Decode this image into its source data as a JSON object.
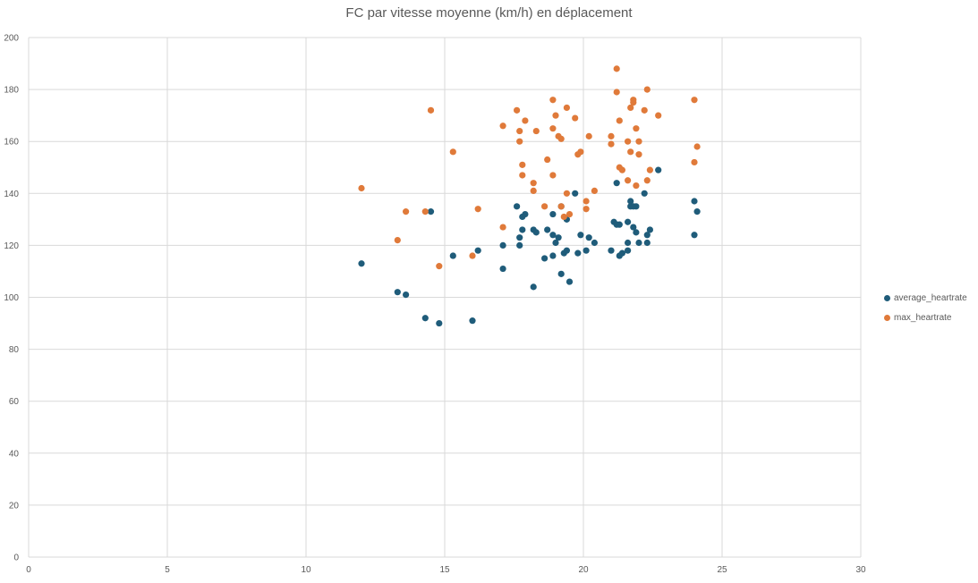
{
  "chart_data": {
    "type": "scatter",
    "title": "FC par vitesse moyenne (km/h) en déplacement",
    "xlabel": "",
    "ylabel": "",
    "xlim": [
      0,
      30
    ],
    "ylim": [
      0,
      200
    ],
    "xticks": [
      0,
      5,
      10,
      15,
      20,
      25,
      30
    ],
    "yticks": [
      0,
      20,
      40,
      60,
      80,
      100,
      120,
      140,
      160,
      180,
      200
    ],
    "grid": true,
    "legend_position": "right",
    "series": [
      {
        "name": "average_heartrate",
        "color": "#1f5c7a",
        "points": [
          [
            12.0,
            113
          ],
          [
            13.3,
            102
          ],
          [
            13.6,
            101
          ],
          [
            14.3,
            92
          ],
          [
            14.5,
            133
          ],
          [
            14.8,
            90
          ],
          [
            15.3,
            116
          ],
          [
            16.0,
            91
          ],
          [
            16.2,
            118
          ],
          [
            17.1,
            111
          ],
          [
            17.1,
            120
          ],
          [
            17.6,
            135
          ],
          [
            17.7,
            123
          ],
          [
            17.7,
            120
          ],
          [
            17.8,
            131
          ],
          [
            17.8,
            126
          ],
          [
            17.9,
            132
          ],
          [
            18.2,
            104
          ],
          [
            18.2,
            126
          ],
          [
            18.3,
            125
          ],
          [
            18.6,
            115
          ],
          [
            18.7,
            126
          ],
          [
            18.9,
            132
          ],
          [
            18.9,
            116
          ],
          [
            18.9,
            124
          ],
          [
            19.0,
            121
          ],
          [
            19.1,
            123
          ],
          [
            19.2,
            109
          ],
          [
            19.2,
            135
          ],
          [
            19.3,
            117
          ],
          [
            19.4,
            118
          ],
          [
            19.4,
            130
          ],
          [
            19.5,
            106
          ],
          [
            19.7,
            140
          ],
          [
            19.8,
            117
          ],
          [
            19.9,
            124
          ],
          [
            20.1,
            118
          ],
          [
            20.2,
            123
          ],
          [
            20.4,
            121
          ],
          [
            21.0,
            118
          ],
          [
            21.1,
            129
          ],
          [
            21.2,
            144
          ],
          [
            21.2,
            128
          ],
          [
            21.3,
            128
          ],
          [
            21.3,
            116
          ],
          [
            21.4,
            117
          ],
          [
            21.6,
            118
          ],
          [
            21.6,
            129
          ],
          [
            21.6,
            121
          ],
          [
            21.7,
            135
          ],
          [
            21.7,
            137
          ],
          [
            21.8,
            135
          ],
          [
            21.8,
            127
          ],
          [
            21.9,
            125
          ],
          [
            21.9,
            135
          ],
          [
            22.0,
            121
          ],
          [
            22.2,
            140
          ],
          [
            22.3,
            121
          ],
          [
            22.3,
            124
          ],
          [
            22.4,
            126
          ],
          [
            22.7,
            149
          ],
          [
            24.0,
            137
          ],
          [
            24.0,
            124
          ],
          [
            24.1,
            133
          ]
        ]
      },
      {
        "name": "max_heartrate",
        "color": "#e07a3a",
        "points": [
          [
            12.0,
            142
          ],
          [
            13.3,
            122
          ],
          [
            13.6,
            133
          ],
          [
            14.3,
            133
          ],
          [
            14.5,
            172
          ],
          [
            14.8,
            112
          ],
          [
            15.3,
            156
          ],
          [
            16.0,
            116
          ],
          [
            16.2,
            134
          ],
          [
            17.1,
            166
          ],
          [
            17.1,
            127
          ],
          [
            17.6,
            172
          ],
          [
            17.7,
            164
          ],
          [
            17.7,
            160
          ],
          [
            17.8,
            147
          ],
          [
            17.8,
            151
          ],
          [
            17.9,
            168
          ],
          [
            18.2,
            144
          ],
          [
            18.2,
            141
          ],
          [
            18.3,
            164
          ],
          [
            18.6,
            135
          ],
          [
            18.7,
            153
          ],
          [
            18.9,
            176
          ],
          [
            18.9,
            165
          ],
          [
            18.9,
            147
          ],
          [
            19.0,
            170
          ],
          [
            19.1,
            162
          ],
          [
            19.2,
            161
          ],
          [
            19.2,
            135
          ],
          [
            19.3,
            131
          ],
          [
            19.4,
            173
          ],
          [
            19.4,
            140
          ],
          [
            19.5,
            132
          ],
          [
            19.7,
            169
          ],
          [
            19.8,
            155
          ],
          [
            19.9,
            156
          ],
          [
            20.1,
            137
          ],
          [
            20.1,
            134
          ],
          [
            20.2,
            162
          ],
          [
            20.4,
            141
          ],
          [
            21.0,
            159
          ],
          [
            21.0,
            162
          ],
          [
            21.2,
            188
          ],
          [
            21.2,
            179
          ],
          [
            21.3,
            168
          ],
          [
            21.3,
            150
          ],
          [
            21.4,
            149
          ],
          [
            21.6,
            145
          ],
          [
            21.6,
            160
          ],
          [
            21.7,
            156
          ],
          [
            21.7,
            173
          ],
          [
            21.8,
            176
          ],
          [
            21.8,
            175
          ],
          [
            21.9,
            165
          ],
          [
            21.9,
            143
          ],
          [
            22.0,
            160
          ],
          [
            22.0,
            155
          ],
          [
            22.2,
            172
          ],
          [
            22.3,
            145
          ],
          [
            22.3,
            180
          ],
          [
            22.4,
            149
          ],
          [
            22.7,
            170
          ],
          [
            24.0,
            176
          ],
          [
            24.0,
            152
          ],
          [
            24.1,
            158
          ]
        ]
      }
    ]
  }
}
